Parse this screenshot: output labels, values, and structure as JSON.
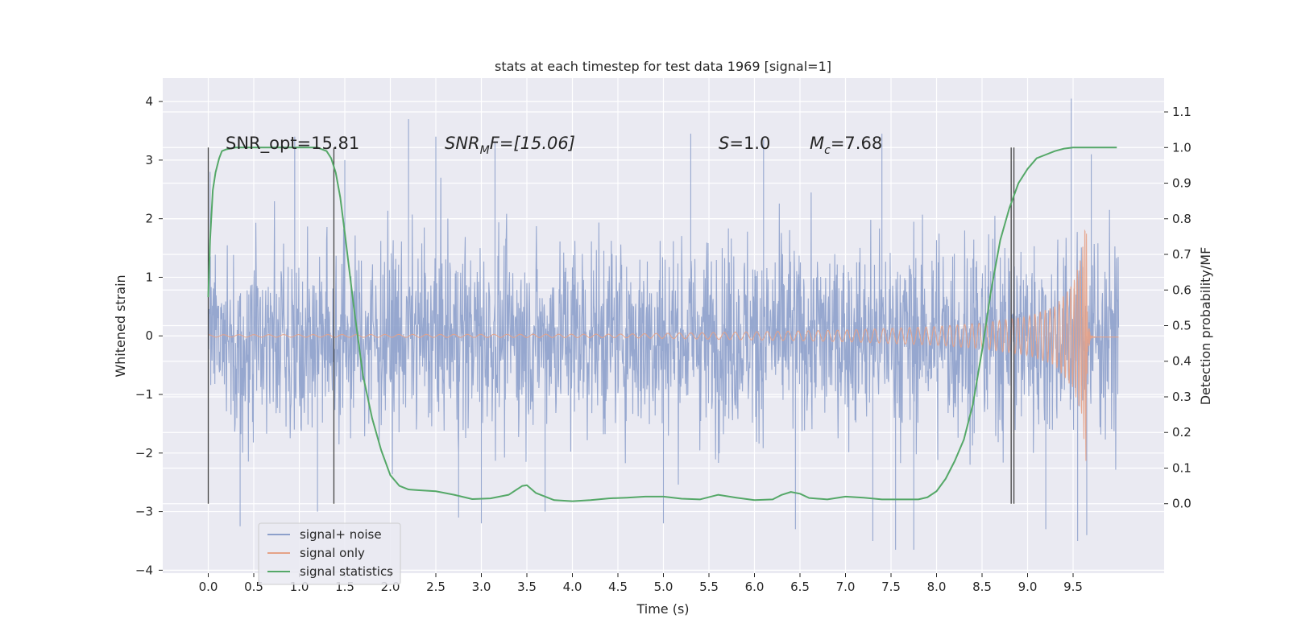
{
  "chart_data": {
    "type": "line",
    "title": "stats at each timestep for test data 1969 [signal=1]",
    "xlabel": "Time (s)",
    "ylabel": "Whitened strain",
    "ylabel_right": "Detection probability/MF",
    "xlim": [
      -0.5,
      10.5
    ],
    "ylim": [
      -4.05,
      4.4
    ],
    "ylim_right": [
      -0.195,
      1.195
    ],
    "x_ticks": [
      "0.0",
      "0.5",
      "1.0",
      "1.5",
      "2.0",
      "2.5",
      "3.0",
      "3.5",
      "4.0",
      "4.5",
      "5.0",
      "5.5",
      "6.0",
      "6.5",
      "7.0",
      "7.5",
      "8.0",
      "8.5",
      "9.0",
      "9.5"
    ],
    "y_ticks": [
      "4",
      "3",
      "2",
      "1",
      "0",
      "−1",
      "−2",
      "−3",
      "−4"
    ],
    "y_ticks_right": [
      "1.1",
      "1.0",
      "0.9",
      "0.8",
      "0.7",
      "0.6",
      "0.5",
      "0.4",
      "0.3",
      "0.2",
      "0.1",
      "0.0"
    ],
    "annotations": {
      "snr_opt": "SNR_opt=15.81",
      "snr_mf_main": "SNR",
      "snr_mf_sub": "M",
      "snr_mf_rest": "F=[15.06]",
      "s_var": "S",
      "s_rest": "=1.0",
      "mc_var": "M",
      "mc_sub": "c",
      "mc_rest": "=7.68"
    },
    "series": [
      {
        "name": "signal+ noise",
        "color": "#8da0cb",
        "description_style": "dense noise band",
        "x_range": [
          0.0,
          10.0
        ],
        "typical_envelope": [
          -2.0,
          2.0
        ],
        "spikes": [
          {
            "x": 0.02,
            "y": 2.8
          },
          {
            "x": 0.95,
            "y": 3.4
          },
          {
            "x": 1.5,
            "y": 3.0
          },
          {
            "x": 2.2,
            "y": 3.7
          },
          {
            "x": 2.5,
            "y": 3.4
          },
          {
            "x": 3.15,
            "y": 3.3
          },
          {
            "x": 5.3,
            "y": 3.45
          },
          {
            "x": 6.1,
            "y": 3.35
          },
          {
            "x": 7.4,
            "y": 3.45
          },
          {
            "x": 9.48,
            "y": 4.05
          },
          {
            "x": 9.7,
            "y": 3.1
          },
          {
            "x": 0.35,
            "y": -3.25
          },
          {
            "x": 1.2,
            "y": -3.0
          },
          {
            "x": 2.75,
            "y": -3.1
          },
          {
            "x": 3.0,
            "y": -3.2
          },
          {
            "x": 3.7,
            "y": -3.0
          },
          {
            "x": 5.0,
            "y": -3.2
          },
          {
            "x": 6.45,
            "y": -3.3
          },
          {
            "x": 7.3,
            "y": -3.5
          },
          {
            "x": 7.55,
            "y": -3.65
          },
          {
            "x": 7.75,
            "y": -3.65
          },
          {
            "x": 9.2,
            "y": -3.3
          },
          {
            "x": 9.55,
            "y": -3.5
          },
          {
            "x": 9.65,
            "y": -3.4
          }
        ]
      },
      {
        "name": "signal only",
        "color": "#e5a287",
        "description_style": "chirp",
        "x_range": [
          0.0,
          10.0
        ],
        "merger_time": 9.65,
        "amplitude_points": [
          [
            0.0,
            0.02
          ],
          [
            4.5,
            0.03
          ],
          [
            6.0,
            0.07
          ],
          [
            7.0,
            0.1
          ],
          [
            8.0,
            0.16
          ],
          [
            8.5,
            0.22
          ],
          [
            9.0,
            0.33
          ],
          [
            9.3,
            0.5
          ],
          [
            9.5,
            0.9
          ],
          [
            9.6,
            1.4
          ],
          [
            9.65,
            2.4
          ]
        ]
      },
      {
        "name": "signal statistics",
        "color": "#55a868",
        "axis": "right",
        "x": [
          0.0,
          0.02,
          0.05,
          0.08,
          0.12,
          0.15,
          0.2,
          0.3,
          0.6,
          1.0,
          1.2,
          1.3,
          1.35,
          1.4,
          1.45,
          1.5,
          1.6,
          1.7,
          1.8,
          1.9,
          2.0,
          2.1,
          2.2,
          2.3,
          2.5,
          2.7,
          2.9,
          3.1,
          3.3,
          3.45,
          3.5,
          3.6,
          3.8,
          4.0,
          4.2,
          4.4,
          4.6,
          4.8,
          5.0,
          5.2,
          5.4,
          5.6,
          5.8,
          6.0,
          6.2,
          6.3,
          6.4,
          6.5,
          6.6,
          6.8,
          7.0,
          7.2,
          7.4,
          7.6,
          7.8,
          7.9,
          8.0,
          8.1,
          8.2,
          8.3,
          8.4,
          8.5,
          8.6,
          8.7,
          8.8,
          8.9,
          9.0,
          9.1,
          9.2,
          9.3,
          9.4,
          9.5,
          9.75,
          9.98
        ],
        "y": [
          0.58,
          0.74,
          0.88,
          0.93,
          0.97,
          0.99,
          0.995,
          1.0,
          1.0,
          1.0,
          1.0,
          0.99,
          0.97,
          0.93,
          0.86,
          0.76,
          0.55,
          0.36,
          0.24,
          0.15,
          0.08,
          0.05,
          0.04,
          0.038,
          0.035,
          0.025,
          0.013,
          0.015,
          0.025,
          0.05,
          0.052,
          0.03,
          0.01,
          0.007,
          0.01,
          0.015,
          0.017,
          0.02,
          0.02,
          0.014,
          0.012,
          0.025,
          0.017,
          0.01,
          0.012,
          0.025,
          0.033,
          0.028,
          0.016,
          0.012,
          0.02,
          0.017,
          0.012,
          0.012,
          0.012,
          0.018,
          0.035,
          0.07,
          0.12,
          0.18,
          0.28,
          0.43,
          0.6,
          0.74,
          0.83,
          0.9,
          0.94,
          0.97,
          0.98,
          0.99,
          0.997,
          1.0,
          1.0,
          1.0
        ]
      }
    ],
    "vertical_lines_x": [
      0.0,
      1.38,
      8.82,
      8.85
    ],
    "vertical_lines_color": "#444444",
    "grid": true,
    "legend_position": "lower-left",
    "background_color": "#eaeaf2",
    "grid_color": "#ffffff"
  }
}
